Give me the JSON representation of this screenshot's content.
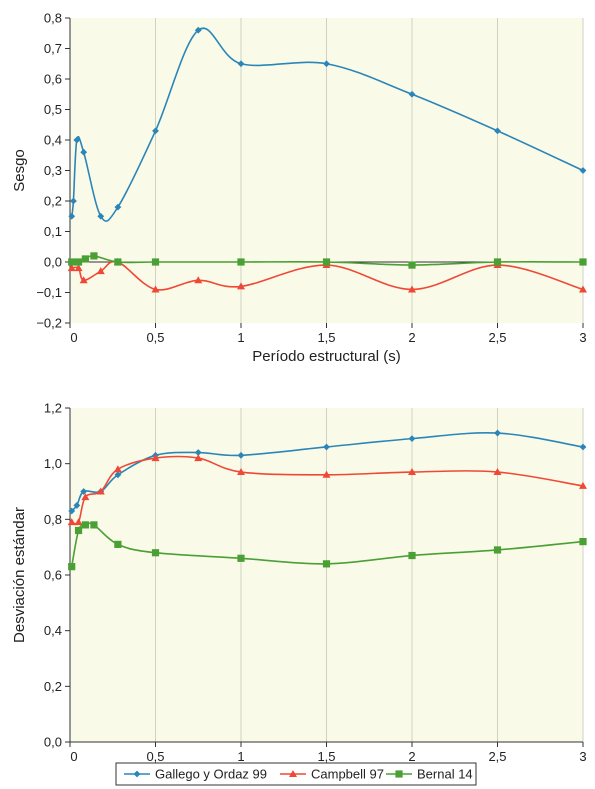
{
  "chart_data": [
    {
      "type": "line",
      "xlabel": "Período estructural (s)",
      "ylabel": "Sesgo",
      "xlim": [
        0,
        3
      ],
      "ylim": [
        -0.2,
        0.8
      ],
      "xticks": [
        0,
        0.5,
        1,
        1.5,
        2,
        2.5,
        3
      ],
      "xtick_labels": [
        "0",
        "0,5",
        "1",
        "1,5",
        "2",
        "2,5",
        "3"
      ],
      "yticks": [
        -0.2,
        -0.1,
        0.0,
        0.1,
        0.2,
        0.3,
        0.4,
        0.5,
        0.6,
        0.7,
        0.8
      ],
      "ytick_labels": [
        "−0,2",
        "−0,1",
        "0,0",
        "0,1",
        "0,2",
        "0,3",
        "0,4",
        "0,5",
        "0,6",
        "0,7",
        "0,8"
      ],
      "grid": "vertical",
      "background": "#fafae8",
      "series": [
        {
          "name": "Gallego y Ordaz 99",
          "color": "#2a86b8",
          "marker": "diamond",
          "x": [
            0.01,
            0.02,
            0.04,
            0.08,
            0.18,
            0.28,
            0.5,
            0.75,
            1.0,
            1.5,
            2.0,
            2.5,
            3.0
          ],
          "y": [
            0.15,
            0.2,
            0.4,
            0.36,
            0.15,
            0.18,
            0.43,
            0.76,
            0.65,
            0.65,
            0.55,
            0.43,
            0.3
          ]
        },
        {
          "name": "Campbell 97",
          "color": "#f04836",
          "marker": "triangle",
          "x": [
            0.01,
            0.05,
            0.08,
            0.18,
            0.28,
            0.5,
            0.75,
            1.0,
            1.5,
            2.0,
            2.5,
            3.0
          ],
          "y": [
            -0.02,
            -0.02,
            -0.06,
            -0.03,
            0.0,
            -0.09,
            -0.06,
            -0.08,
            -0.01,
            -0.09,
            -0.01,
            -0.09
          ]
        },
        {
          "name": "Bernal 14",
          "color": "#4aa034",
          "marker": "square",
          "x": [
            0.01,
            0.05,
            0.09,
            0.14,
            0.28,
            0.5,
            1.0,
            1.5,
            2.0,
            2.5,
            3.0
          ],
          "y": [
            0.0,
            0.0,
            0.01,
            0.02,
            0.0,
            0.0,
            0.0,
            0.0,
            -0.01,
            0.0,
            0.0
          ]
        }
      ]
    },
    {
      "type": "line",
      "xlabel": "Período estructural (s)",
      "ylabel": "Desviación estándar",
      "xlim": [
        0,
        3
      ],
      "ylim": [
        0,
        1.2
      ],
      "xticks": [
        0,
        0.5,
        1,
        1.5,
        2,
        2.5,
        3
      ],
      "xtick_labels": [
        "0",
        "0,5",
        "1",
        "1,5",
        "2",
        "2,5",
        "3"
      ],
      "yticks": [
        0.0,
        0.2,
        0.4,
        0.6,
        0.8,
        1.0,
        1.2
      ],
      "ytick_labels": [
        "0,0",
        "0,2",
        "0,4",
        "0,6",
        "0,8",
        "1,0",
        "1,2"
      ],
      "grid": "vertical",
      "background": "#fafae8",
      "series": [
        {
          "name": "Gallego y Ordaz 99",
          "color": "#2a86b8",
          "marker": "diamond",
          "x": [
            0.01,
            0.04,
            0.08,
            0.18,
            0.28,
            0.5,
            0.75,
            1.0,
            1.5,
            2.0,
            2.5,
            3.0
          ],
          "y": [
            0.83,
            0.85,
            0.9,
            0.9,
            0.96,
            1.03,
            1.04,
            1.03,
            1.06,
            1.09,
            1.11,
            1.06
          ]
        },
        {
          "name": "Campbell 97",
          "color": "#f04836",
          "marker": "triangle",
          "x": [
            0.01,
            0.05,
            0.09,
            0.18,
            0.28,
            0.5,
            0.75,
            1.0,
            1.5,
            2.0,
            2.5,
            3.0
          ],
          "y": [
            0.79,
            0.79,
            0.88,
            0.9,
            0.98,
            1.02,
            1.02,
            0.97,
            0.96,
            0.97,
            0.97,
            0.92
          ]
        },
        {
          "name": "Bernal 14",
          "color": "#4aa034",
          "marker": "square",
          "x": [
            0.01,
            0.05,
            0.09,
            0.14,
            0.28,
            0.5,
            1.0,
            1.5,
            2.0,
            2.5,
            3.0
          ],
          "y": [
            0.63,
            0.76,
            0.78,
            0.78,
            0.71,
            0.68,
            0.66,
            0.64,
            0.67,
            0.69,
            0.72
          ]
        }
      ]
    }
  ],
  "legend": {
    "position": "bottom",
    "entries": [
      {
        "label": "Gallego y Ordaz 99",
        "color": "#2a86b8",
        "marker": "diamond"
      },
      {
        "label": "Campbell 97",
        "color": "#f04836",
        "marker": "triangle"
      },
      {
        "label": "Bernal 14",
        "color": "#4aa034",
        "marker": "square"
      }
    ]
  }
}
